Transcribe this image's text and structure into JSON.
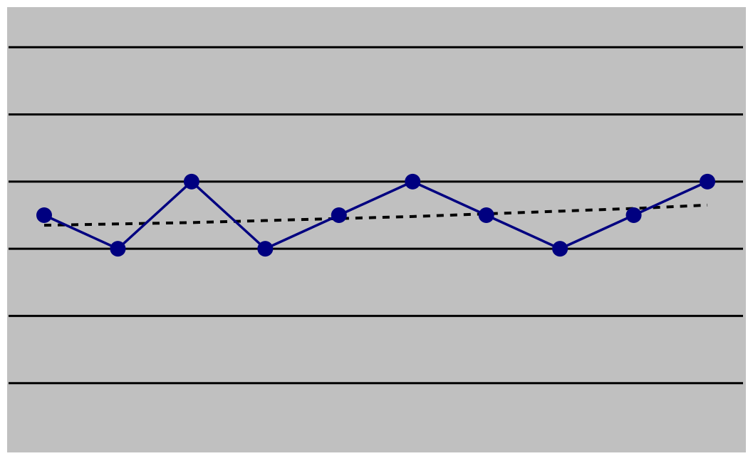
{
  "chart_data": {
    "type": "line",
    "title": "",
    "xlabel": "",
    "ylabel": "",
    "x": [
      1,
      2,
      3,
      4,
      5,
      6,
      7,
      8,
      9,
      10
    ],
    "ylim": [
      0,
      7
    ],
    "gridlines_y": [
      1,
      2,
      3,
      4,
      5,
      6
    ],
    "grid": true,
    "legend": "none",
    "series": [
      {
        "values": [
          3.5,
          3.0,
          4.0,
          3.0,
          3.5,
          4.0,
          3.5,
          3.0,
          3.5,
          4.0
        ],
        "style": "solid-with-markers"
      },
      {
        "values": [
          3.35,
          3.37,
          3.39,
          3.42,
          3.45,
          3.48,
          3.52,
          3.56,
          3.6,
          3.65
        ],
        "style": "dotted-trend"
      }
    ]
  },
  "colors": {
    "plot_background": "#c0c0c0",
    "gridline": "#000000",
    "series_line": "#000080",
    "series_marker": "#000080",
    "trend_line": "#000000"
  }
}
